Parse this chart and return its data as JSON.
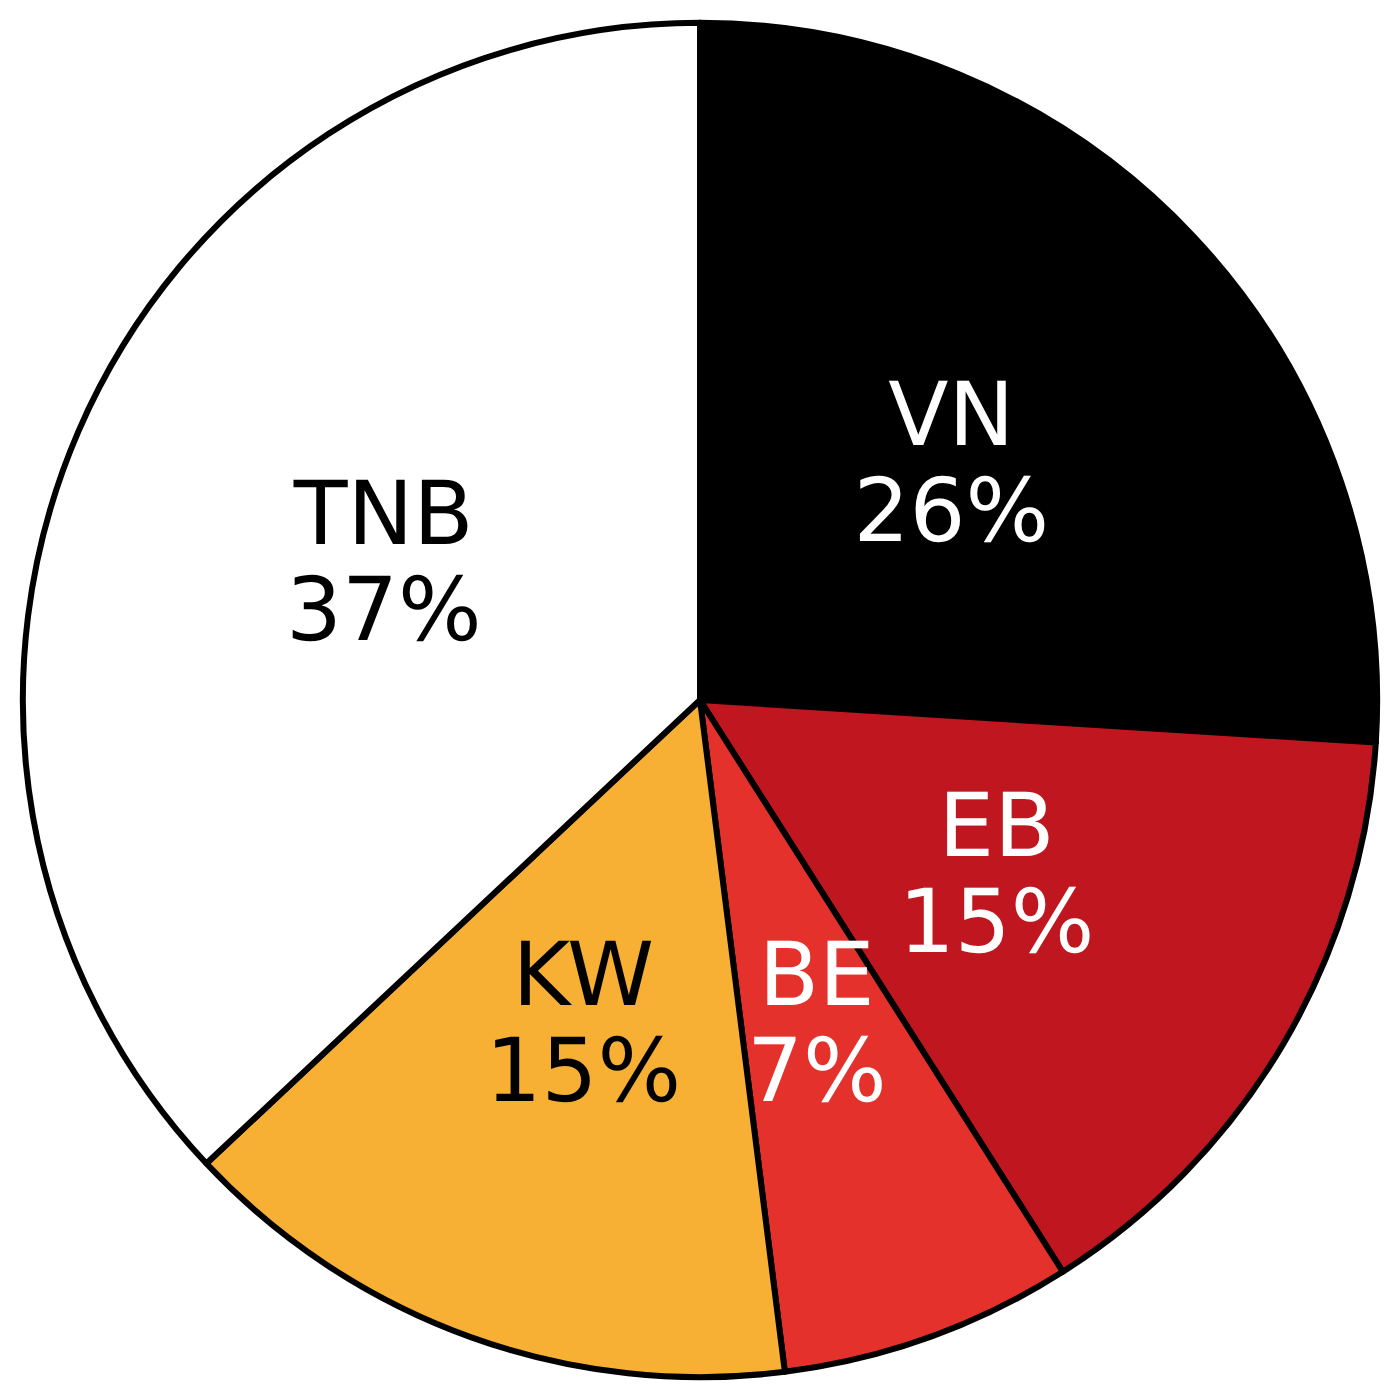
{
  "chart_data": {
    "type": "pie",
    "categories": [
      "VN",
      "EB",
      "BE",
      "KW",
      "TNB"
    ],
    "values": [
      26,
      15,
      7,
      15,
      37
    ],
    "value_labels": [
      "26%",
      "15%",
      "7%",
      "15%",
      "37%"
    ],
    "colors": [
      "#000000",
      "#c0161f",
      "#e4312b",
      "#f7b033",
      "#ffffff"
    ],
    "legend": false
  }
}
